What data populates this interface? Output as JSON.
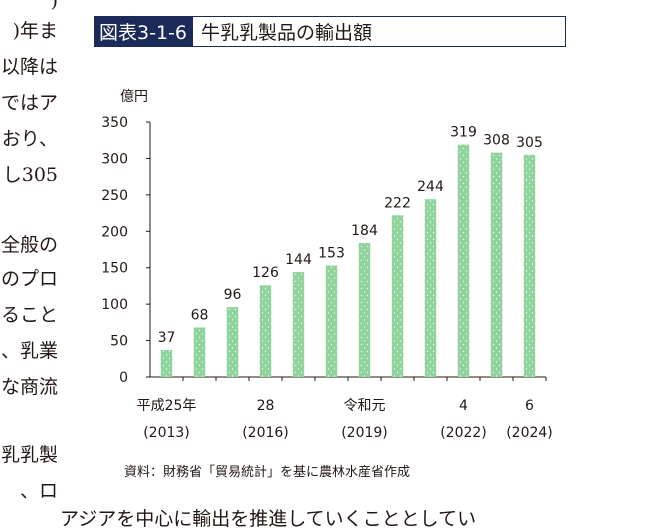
{
  "body_text": {
    "lines": [
      ")",
      ")年ま",
      "以降は",
      "ではア",
      "おり、",
      "し305",
      "",
      "全般の",
      "のプロ",
      "ること",
      "、乳業",
      "な商流",
      "",
      "乳乳製",
      "、ロ",
      "アジアを中心に輸出を推進していくこととしてい"
    ]
  },
  "figure": {
    "label": "図表3-1-6",
    "title": "牛乳乳製品の輸出額",
    "source": "資料：財務省「貿易統計」を基に農林水産省作成"
  },
  "chart_data": {
    "type": "bar",
    "title": "牛乳乳製品の輸出額",
    "ylabel": "億円",
    "xlabel": "",
    "ylim": [
      0,
      350
    ],
    "yticks": [
      0,
      50,
      100,
      150,
      200,
      250,
      300,
      350
    ],
    "categories": [
      "2013",
      "2014",
      "2015",
      "2016",
      "2017",
      "2018",
      "2019",
      "2020",
      "2021",
      "2022",
      "2023",
      "2024"
    ],
    "values": [
      37,
      68,
      96,
      126,
      144,
      153,
      184,
      222,
      244,
      319,
      308,
      305
    ],
    "x_labels": [
      {
        "index": 0,
        "top": "平成25年",
        "bottom": "(2013)"
      },
      {
        "index": 3,
        "top": "28",
        "bottom": "(2016)"
      },
      {
        "index": 6,
        "top": "令和元",
        "bottom": "(2019)"
      },
      {
        "index": 9,
        "top": "4",
        "bottom": "(2022)"
      },
      {
        "index": 11,
        "top": "6",
        "bottom": "(2024)"
      }
    ],
    "bar_color": "#8fd49c",
    "grid": false
  }
}
